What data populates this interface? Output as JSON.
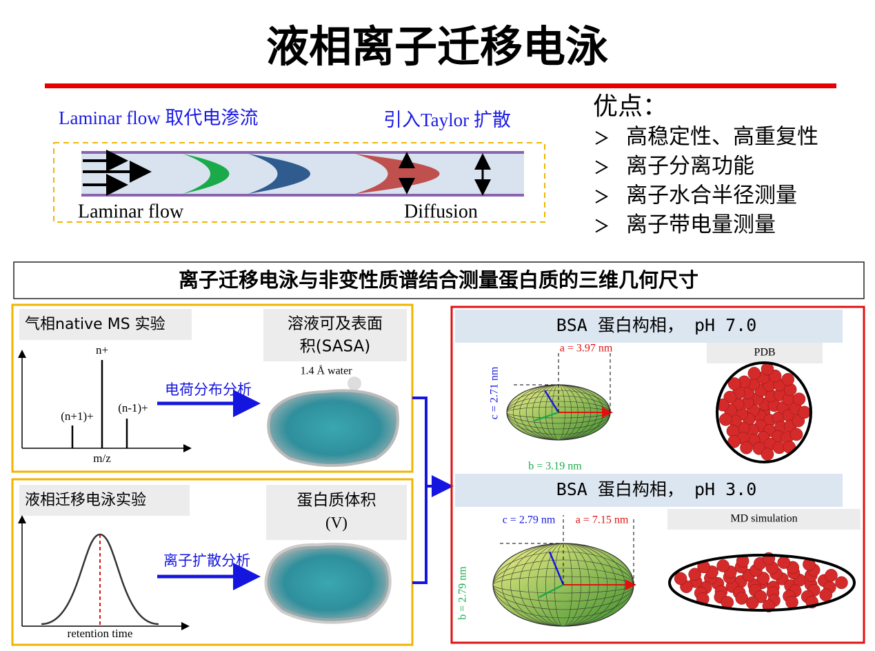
{
  "title": "液相离子迁移电泳",
  "flow": {
    "left_caption": "Laminar flow 取代电渗流",
    "right_caption": "引入Taylor  扩散",
    "left_label": "Laminar flow",
    "right_label": "Diffusion"
  },
  "advantages": {
    "heading": "优点：",
    "items": [
      "高稳定性、高重复性",
      "离子分离功能",
      "离子水合半径测量",
      "离子带电量测量"
    ]
  },
  "banner": "离子迁移电泳与非变性质谱结合测量蛋白质的三维几何尺寸",
  "ms_panel": {
    "label": "气相native MS 实验",
    "sasa_lines": [
      "溶液可及表面",
      "积(SASA)"
    ],
    "water": "1.4 Å water",
    "peaks": [
      "n+",
      "(n+1)+",
      "(n-1)+"
    ],
    "x_axis": "m/z",
    "arrow_label": "电荷分布分析"
  },
  "ce_panel": {
    "label": "液相迁移电泳实验",
    "volume_lines": [
      "蛋白质体积",
      "(V)"
    ],
    "x_axis": "retention time",
    "arrow_label": "离子扩散分析"
  },
  "conformations": [
    {
      "header": "BSA  蛋白构相，  pH 7.0",
      "a": "a = 3.97 nm",
      "b": "b = 3.19 nm",
      "c": "c = 2.71 nm",
      "model": "PDB"
    },
    {
      "header": "BSA  蛋白构相，  pH 3.0",
      "a": "a = 7.15 nm",
      "b": "b = 2.79 nm",
      "c": "c = 2.79 nm",
      "model": "MD simulation"
    }
  ]
}
